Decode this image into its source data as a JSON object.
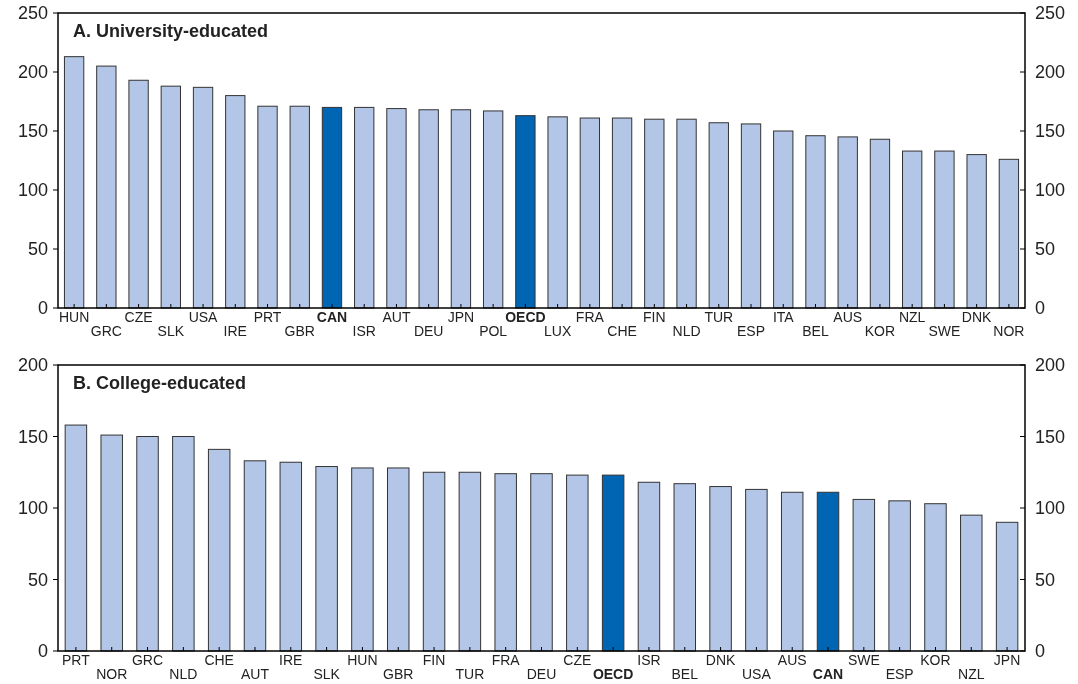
{
  "chart_data": [
    {
      "type": "bar",
      "title": "A. University-educated",
      "categories": [
        "HUN",
        "GRC",
        "CZE",
        "SLK",
        "USA",
        "IRE",
        "PRT",
        "GBR",
        "CAN",
        "ISR",
        "AUT",
        "DEU",
        "JPN",
        "POL",
        "OECD",
        "LUX",
        "FRA",
        "CHE",
        "FIN",
        "NLD",
        "TUR",
        "ESP",
        "ITA",
        "BEL",
        "AUS",
        "KOR",
        "NZL",
        "SWE",
        "DNK",
        "NOR"
      ],
      "values": [
        213,
        205,
        193,
        188,
        187,
        180,
        171,
        171,
        170,
        170,
        169,
        168,
        168,
        167,
        163,
        162,
        161,
        161,
        160,
        160,
        157,
        156,
        150,
        146,
        145,
        143,
        133,
        133,
        130,
        126
      ],
      "colors": [
        "#b3c6e7",
        "#b3c6e7",
        "#b3c6e7",
        "#b3c6e7",
        "#b3c6e7",
        "#b3c6e7",
        "#b3c6e7",
        "#b3c6e7",
        "#0066b3",
        "#b3c6e7",
        "#b3c6e7",
        "#b3c6e7",
        "#b3c6e7",
        "#b3c6e7",
        "#0066b3",
        "#b3c6e7",
        "#b3c6e7",
        "#b3c6e7",
        "#b3c6e7",
        "#b3c6e7",
        "#b3c6e7",
        "#b3c6e7",
        "#b3c6e7",
        "#b3c6e7",
        "#b3c6e7",
        "#b3c6e7",
        "#b3c6e7",
        "#b3c6e7",
        "#b3c6e7",
        "#b3c6e7"
      ],
      "ylim": [
        0,
        250
      ],
      "yticks": [
        0,
        50,
        100,
        150,
        200,
        250
      ],
      "y2lim": [
        0,
        250
      ],
      "y2ticks": [
        0,
        50,
        100,
        150,
        200,
        250
      ]
    },
    {
      "type": "bar",
      "title": "B. College-educated",
      "categories": [
        "PRT",
        "NOR",
        "GRC",
        "NLD",
        "CHE",
        "AUT",
        "IRE",
        "SLK",
        "HUN",
        "GBR",
        "FIN",
        "TUR",
        "FRA",
        "DEU",
        "CZE",
        "OECD",
        "ISR",
        "BEL",
        "DNK",
        "USA",
        "AUS",
        "CAN",
        "SWE",
        "ESP",
        "KOR",
        "NZL",
        "JPN"
      ],
      "values": [
        158,
        151,
        150,
        150,
        141,
        133,
        132,
        129,
        128,
        128,
        125,
        125,
        124,
        124,
        123,
        123,
        118,
        117,
        115,
        113,
        111,
        111,
        106,
        105,
        103,
        95,
        90
      ],
      "colors": [
        "#b3c6e7",
        "#b3c6e7",
        "#b3c6e7",
        "#b3c6e7",
        "#b3c6e7",
        "#b3c6e7",
        "#b3c6e7",
        "#b3c6e7",
        "#b3c6e7",
        "#b3c6e7",
        "#b3c6e7",
        "#b3c6e7",
        "#b3c6e7",
        "#b3c6e7",
        "#b3c6e7",
        "#0066b3",
        "#b3c6e7",
        "#b3c6e7",
        "#b3c6e7",
        "#b3c6e7",
        "#b3c6e7",
        "#0066b3",
        "#b3c6e7",
        "#b3c6e7",
        "#b3c6e7",
        "#b3c6e7",
        "#b3c6e7"
      ],
      "ylim": [
        0,
        200
      ],
      "yticks": [
        0,
        50,
        100,
        150,
        200
      ],
      "y2lim": [
        0,
        200
      ],
      "y2ticks": [
        0,
        50,
        100,
        150,
        200
      ]
    }
  ]
}
